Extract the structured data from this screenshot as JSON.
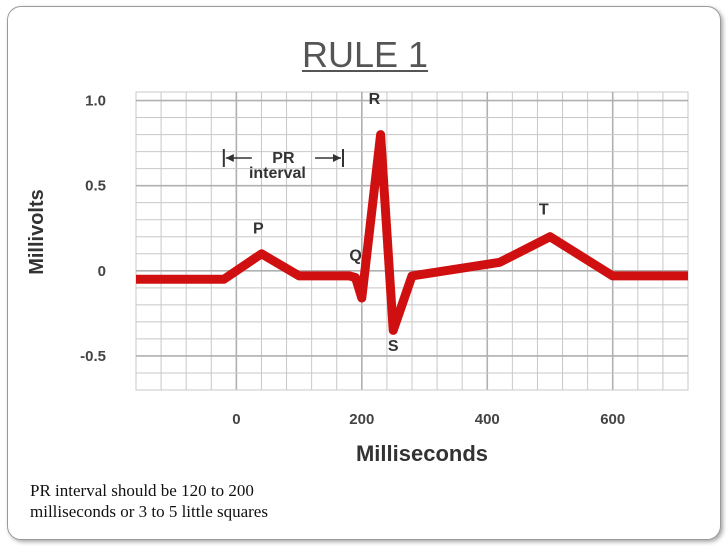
{
  "slide": {
    "title": "RULE 1",
    "caption_line1": "PR interval should be 120 to 200",
    "caption_line2": "milliseconds or 3 to 5 little squares"
  },
  "chart_data": {
    "type": "line",
    "xlabel": "Milliseconds",
    "ylabel": "Millivolts",
    "xlim": [
      -160,
      720
    ],
    "ylim": [
      -0.7,
      1.05
    ],
    "x_ticks": [
      0,
      200,
      400,
      600
    ],
    "x_tick_labels": [
      "0",
      "200",
      "400",
      "600"
    ],
    "y_ticks": [
      1.0,
      0.5,
      0,
      -0.5
    ],
    "y_tick_labels": [
      "1.0",
      "0.5",
      "0",
      "-0.5"
    ],
    "grid": true,
    "series": [
      {
        "x": [
          -160,
          -20,
          40,
          100,
          180,
          190,
          200,
          230,
          250,
          280,
          420,
          500,
          600,
          720
        ],
        "y": [
          -0.05,
          -0.05,
          0.1,
          -0.03,
          -0.03,
          -0.04,
          -0.16,
          0.8,
          -0.35,
          -0.03,
          0.05,
          0.2,
          -0.03,
          -0.03
        ]
      }
    ],
    "wave_labels": [
      {
        "text": "P",
        "x": 35,
        "y": 0.22
      },
      {
        "text": "Q",
        "x": 190,
        "y": 0.06
      },
      {
        "text": "R",
        "x": 220,
        "y": 0.98
      },
      {
        "text": "S",
        "x": 250,
        "y": -0.47
      },
      {
        "text": "T",
        "x": 490,
        "y": 0.33
      }
    ],
    "annotation": {
      "line1": "PR",
      "line2": "interval",
      "x_start": -20,
      "x_end": 170
    },
    "line_color": "#d01010",
    "grid_color": "#c8c8c8"
  }
}
